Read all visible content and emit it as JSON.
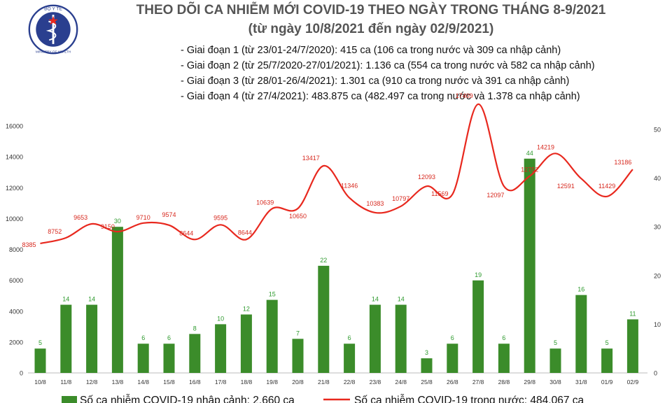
{
  "header": {
    "title": "THEO DÕI CA NHIỄM MỚI COVID-19 THEO NGÀY TRONG THÁNG 8-9/2021",
    "subtitle": "(từ ngày 10/8/2021 đến ngày 02/9/2021)",
    "logo_text_top": "BỘ Y TẾ",
    "logo_text_bottom": "MINISTRY OF HEALTH"
  },
  "phases": [
    "- Giai đoạn 1 (từ 23/01-24/7/2020): 415 ca (106 ca trong nước và 309 ca nhập cảnh)",
    "- Giai đoạn 2 (từ 25/7/2020-27/01/2021): 1.136 ca (554 ca trong nước và 582 ca nhập cảnh)",
    "- Giai đoạn 3 (từ 28/01-26/4/2021): 1.301 ca (910 ca trong nước và 391 ca nhập cảnh)",
    "- Giai đoạn 4 (từ 27/4/2021): 483.875 ca (482.497 ca trong nước và 1.378 ca nhập cảnh)"
  ],
  "colors": {
    "bar": "#3b8c2a",
    "bar_label": "#2e9a2e",
    "line": "#e8281e",
    "line_label": "#d7281e",
    "logo": "#2a3f8f"
  },
  "chart_data": {
    "type": "bar+line",
    "categories": [
      "10/8",
      "11/8",
      "12/8",
      "13/8",
      "14/8",
      "15/8",
      "16/8",
      "17/8",
      "18/8",
      "19/8",
      "20/8",
      "21/8",
      "22/8",
      "23/8",
      "24/8",
      "25/8",
      "26/8",
      "27/8",
      "28/8",
      "29/8",
      "30/8",
      "31/8",
      "01/9",
      "02/9"
    ],
    "series": [
      {
        "name": "Số ca nhiễm COVID-19 nhập cảnh: 2.660 ca",
        "type": "bar",
        "axis": "right",
        "values": [
          5,
          14,
          14,
          30,
          6,
          6,
          8,
          10,
          12,
          15,
          7,
          22,
          6,
          14,
          14,
          3,
          6,
          19,
          6,
          44,
          5,
          16,
          5,
          11
        ]
      },
      {
        "name": "Số ca nhiễm COVID-19 trong nước: 484.067 ca",
        "type": "line",
        "axis": "left",
        "values": [
          8385,
          8752,
          9653,
          9150,
          9710,
          9574,
          8644,
          9595,
          8644,
          10639,
          10650,
          13417,
          11346,
          10383,
          10797,
          12093,
          11569,
          17409,
          12097,
          12752,
          14219,
          12591,
          11429,
          13186
        ]
      }
    ],
    "y_left": {
      "ticks": [
        "0",
        "2000",
        "4000",
        "6000",
        "8000",
        "10000",
        "12000",
        "14000",
        "16000"
      ],
      "range": [
        0,
        16000
      ]
    },
    "y_right": {
      "ticks": [
        "0",
        "10",
        "20",
        "30",
        "40",
        "50"
      ],
      "range": [
        0,
        50
      ]
    },
    "grid": false,
    "legend": "bottom"
  }
}
